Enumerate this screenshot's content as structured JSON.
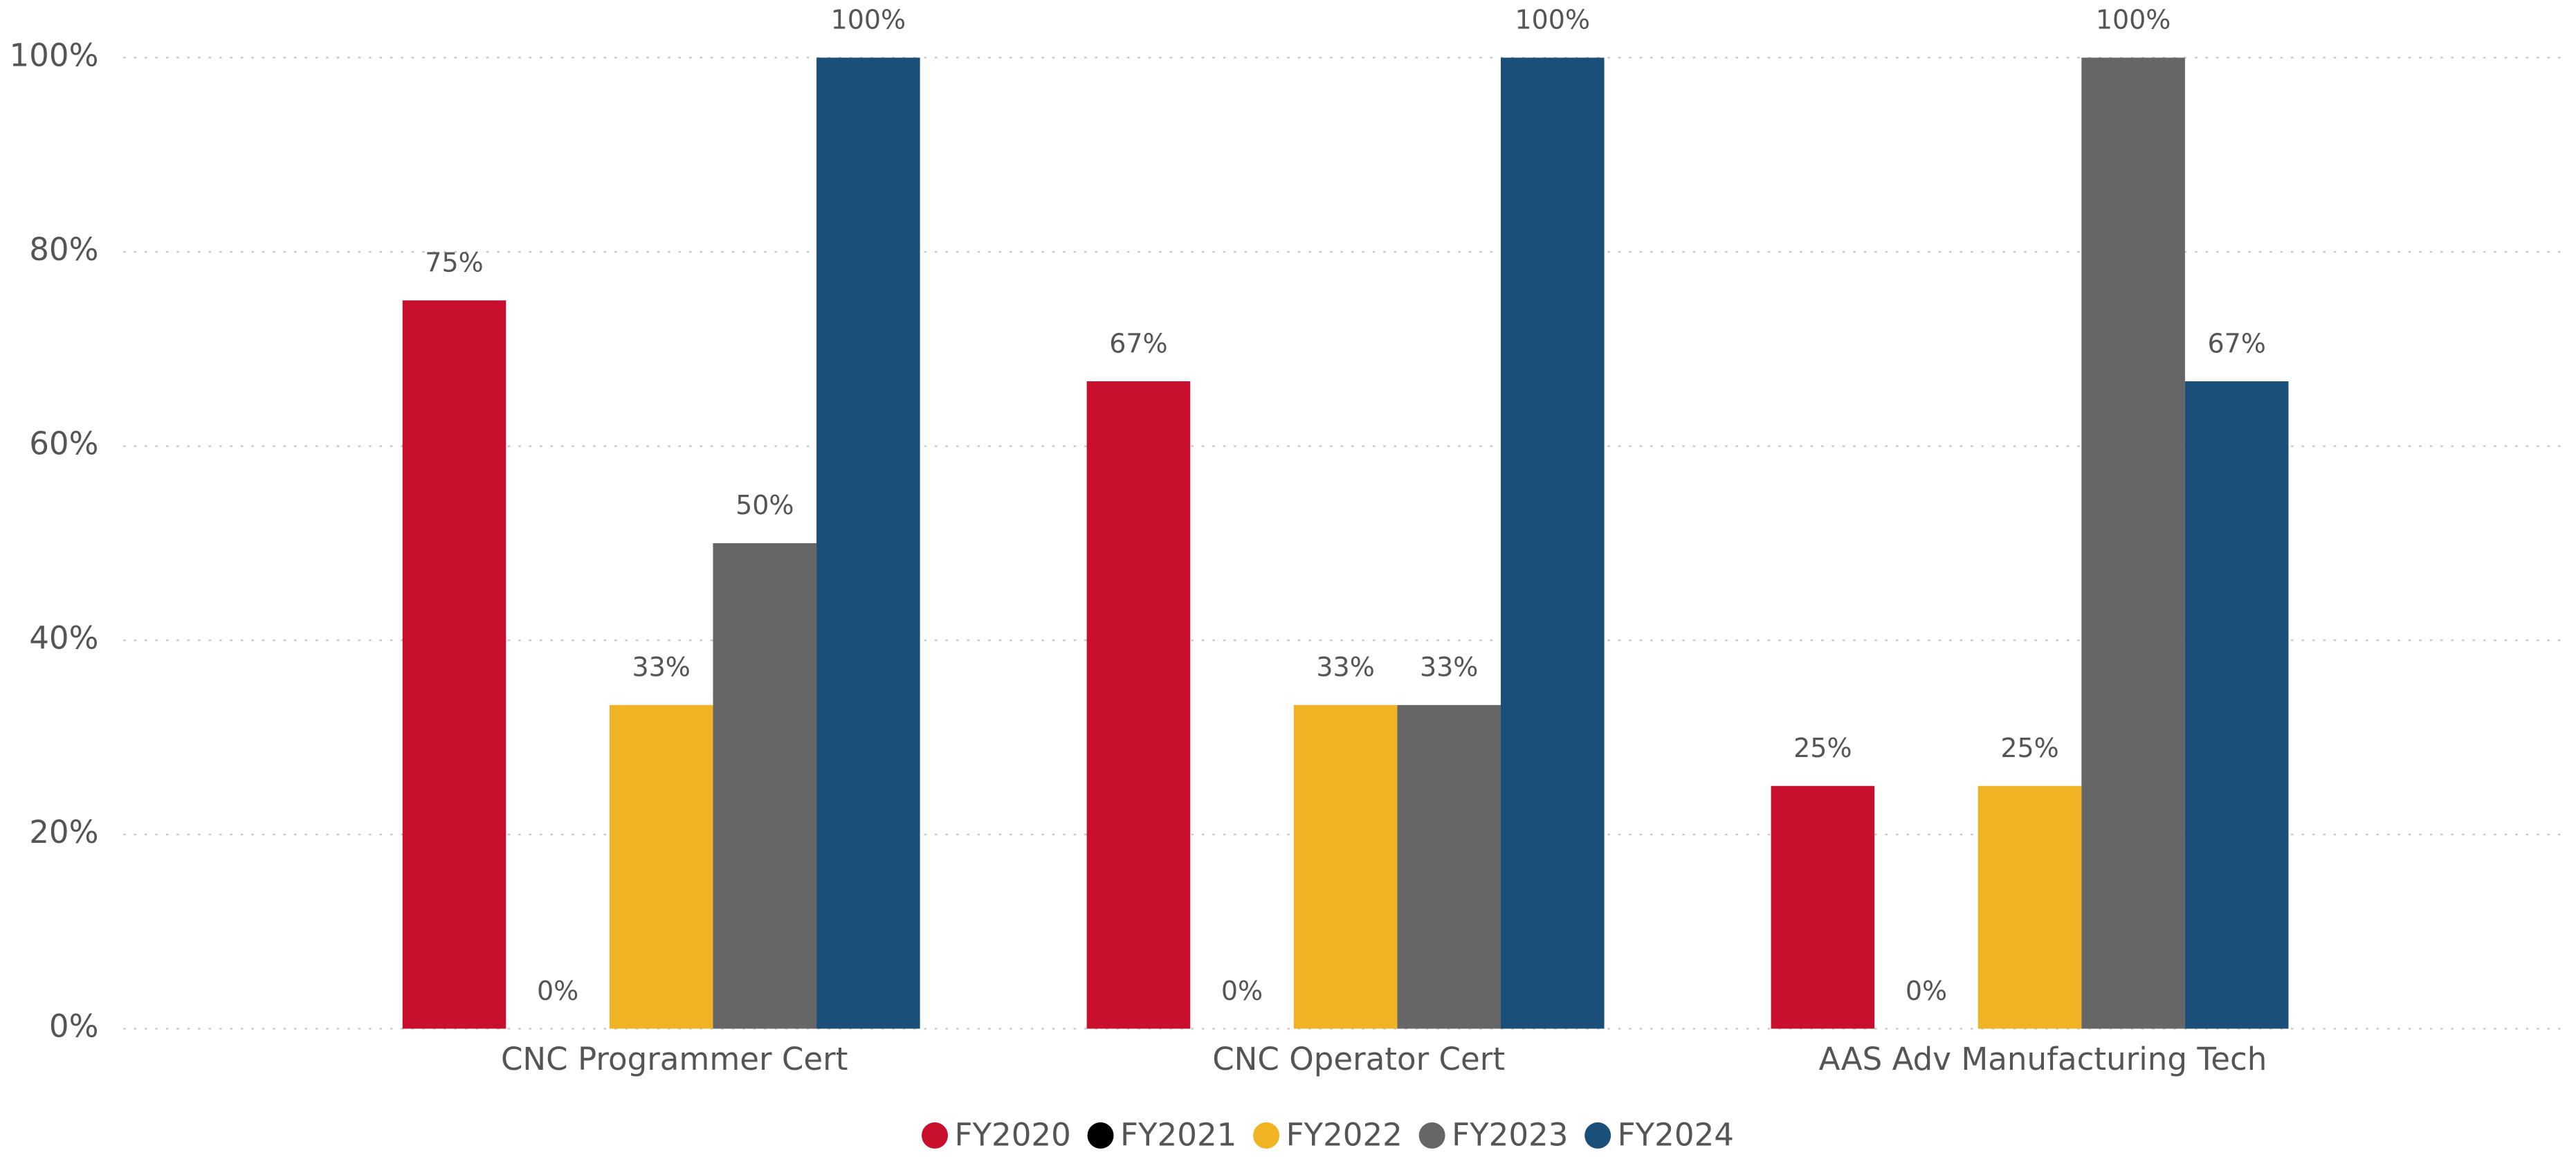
{
  "chart_data": {
    "type": "bar",
    "categories": [
      "CNC Programmer Cert",
      "CNC Operator Cert",
      "AAS Adv Manufacturing Tech"
    ],
    "series": [
      {
        "name": "FY2020",
        "color": "#c8102e",
        "values": [
          75,
          66.67,
          25
        ],
        "value_labels": [
          "75%",
          "67%",
          "25%"
        ]
      },
      {
        "name": "FY2021",
        "color": "#000000",
        "values": [
          0,
          0,
          0
        ],
        "value_labels": [
          "0%",
          "0%",
          "0%"
        ]
      },
      {
        "name": "FY2022",
        "color": "#f0b323",
        "values": [
          33.33,
          33.33,
          25
        ],
        "value_labels": [
          "33%",
          "33%",
          "25%"
        ]
      },
      {
        "name": "FY2023",
        "color": "#666666",
        "values": [
          50,
          33.33,
          100
        ],
        "value_labels": [
          "50%",
          "33%",
          "100%"
        ]
      },
      {
        "name": "FY2024",
        "color": "#1a4f7a",
        "values": [
          100,
          100,
          66.67
        ],
        "value_labels": [
          "100%",
          "100%",
          "67%"
        ]
      }
    ],
    "ylim": [
      0,
      100
    ],
    "yticks": [
      {
        "value": 0,
        "label": "0%"
      },
      {
        "value": 20,
        "label": "20%"
      },
      {
        "value": 40,
        "label": "40%"
      },
      {
        "value": 60,
        "label": "60%"
      },
      {
        "value": 80,
        "label": "80%"
      },
      {
        "value": 100,
        "label": "100%"
      }
    ],
    "grid": true,
    "legend": "bottom"
  }
}
